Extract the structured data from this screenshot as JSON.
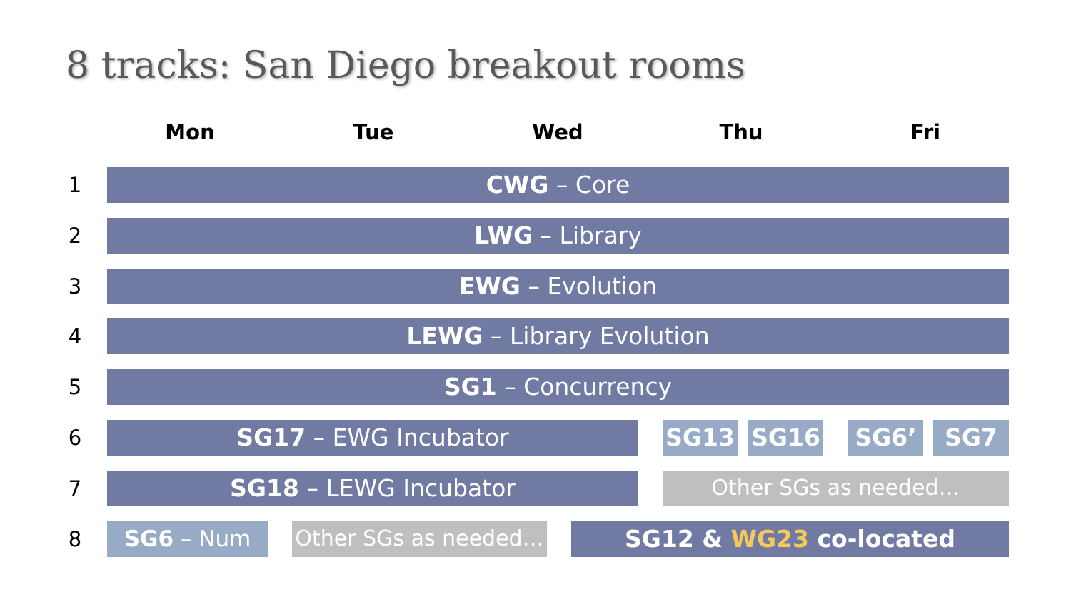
{
  "title": "8 tracks: San Diego breakout rooms",
  "days": [
    "Mon",
    "Tue",
    "Wed",
    "Thu",
    "Fri"
  ],
  "rows": [
    {
      "number": "1",
      "blocks": [
        [
          "CWG",
          "– Core"
        ]
      ]
    },
    {
      "number": "2",
      "blocks": [
        [
          "LWG",
          "– Library"
        ]
      ]
    },
    {
      "number": "3",
      "blocks": [
        [
          "EWG",
          "– Evolution"
        ]
      ]
    },
    {
      "number": "4",
      "blocks": [
        [
          "LEWG",
          "– Library Evolution"
        ]
      ]
    },
    {
      "number": "5",
      "blocks": [
        [
          "SG1",
          "– Concurrency"
        ]
      ]
    },
    {
      "number": "6",
      "blocks": [
        [
          "SG17",
          "– EWG Incubator"
        ],
        [
          "SG13"
        ],
        [
          "SG16"
        ],
        [
          "SG6’"
        ],
        [
          "SG7"
        ]
      ]
    },
    {
      "number": "7",
      "blocks": [
        [
          "SG18",
          "– LEWG Incubator"
        ],
        [
          "Other SGs as needed…"
        ]
      ]
    },
    {
      "number": "8",
      "blocks": [
        [
          "SG6",
          "– Num"
        ],
        [
          "Other SGs as needed…"
        ],
        [
          "SG12 &",
          "WG23",
          "co-located"
        ]
      ]
    }
  ]
}
